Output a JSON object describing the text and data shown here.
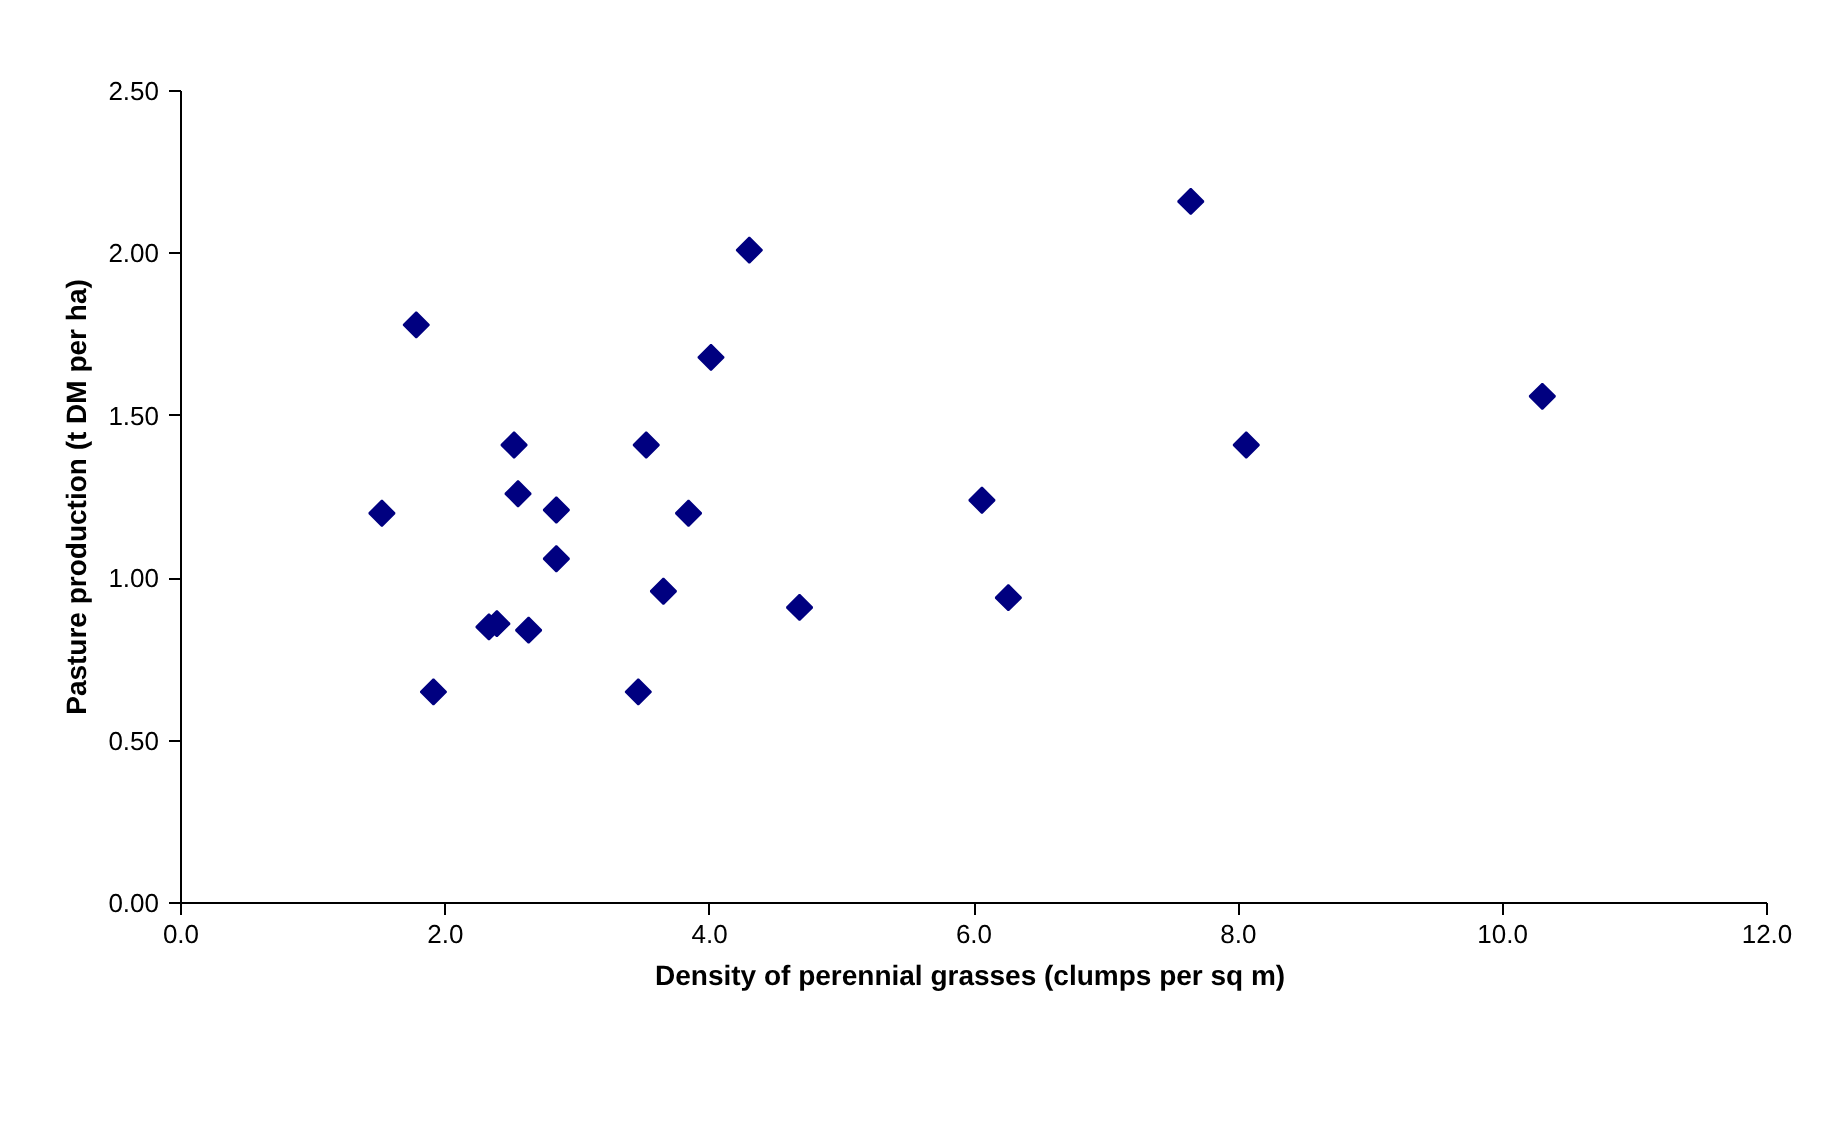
{
  "chart_data": {
    "type": "scatter",
    "xlabel": "Density of perennial grasses  (clumps per sq m)",
    "ylabel": "Pasture production (t DM per ha)",
    "xlim": [
      0,
      12
    ],
    "ylim": [
      0,
      2.5
    ],
    "xticks": [
      {
        "value": 0,
        "label": "0.0"
      },
      {
        "value": 2,
        "label": "2.0"
      },
      {
        "value": 4,
        "label": "4.0"
      },
      {
        "value": 6,
        "label": "6.0"
      },
      {
        "value": 8,
        "label": "8.0"
      },
      {
        "value": 10,
        "label": "10.0"
      },
      {
        "value": 12,
        "label": "12.0"
      }
    ],
    "yticks": [
      {
        "value": 0,
        "label": "0.00"
      },
      {
        "value": 0.5,
        "label": "0.50"
      },
      {
        "value": 1,
        "label": "1.00"
      },
      {
        "value": 1.5,
        "label": "1.50"
      },
      {
        "value": 2,
        "label": "2.00"
      },
      {
        "value": 2.5,
        "label": "2.50"
      }
    ],
    "marker": "diamond",
    "series": [
      {
        "color": "#000080",
        "x": [
          1.52,
          1.78,
          1.91,
          2.33,
          2.39,
          2.52,
          2.55,
          2.63,
          2.84,
          2.84,
          3.46,
          3.52,
          3.65,
          3.84,
          4.01,
          4.3,
          4.68,
          6.06,
          6.26,
          7.64,
          8.06,
          10.3
        ],
        "values": [
          1.2,
          1.78,
          0.65,
          0.85,
          0.86,
          1.41,
          1.26,
          0.84,
          1.21,
          1.06,
          0.65,
          1.41,
          0.96,
          1.2,
          1.68,
          2.01,
          0.91,
          1.24,
          0.94,
          2.16,
          1.41,
          1.56
        ]
      }
    ]
  }
}
